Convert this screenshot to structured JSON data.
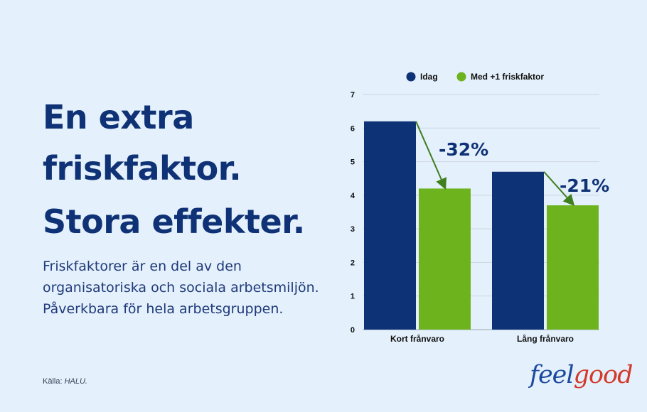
{
  "headline": {
    "line1": "En extra",
    "line2": "friskfaktor.",
    "line3": "Stora effekter."
  },
  "body": {
    "line1": "Friskfaktorer är en del av den",
    "line2": "organisatoriska och sociala arbetsmiljön.",
    "line3": "Påverkbara för hela arbetsgruppen."
  },
  "source": {
    "label": "Källa:",
    "name": "HALU."
  },
  "logo": {
    "part1": "feel",
    "part2": "good"
  },
  "colors": {
    "idag": "#0d3276",
    "med": "#6cb31e",
    "arrow": "#3f7f1e",
    "accent": "#0f3276"
  },
  "chart_data": {
    "type": "bar",
    "categories": [
      "Kort frånvaro",
      "Lång frånvaro"
    ],
    "series": [
      {
        "name": "Idag",
        "values": [
          6.2,
          4.7
        ]
      },
      {
        "name": "Med +1 friskfaktor",
        "values": [
          4.2,
          3.7
        ]
      }
    ],
    "ylim": [
      0,
      7
    ],
    "yticks": [
      0,
      1,
      2,
      3,
      4,
      5,
      6,
      7
    ],
    "grid": true,
    "legend": "top",
    "annotations": [
      "-32%",
      "-21%"
    ]
  }
}
